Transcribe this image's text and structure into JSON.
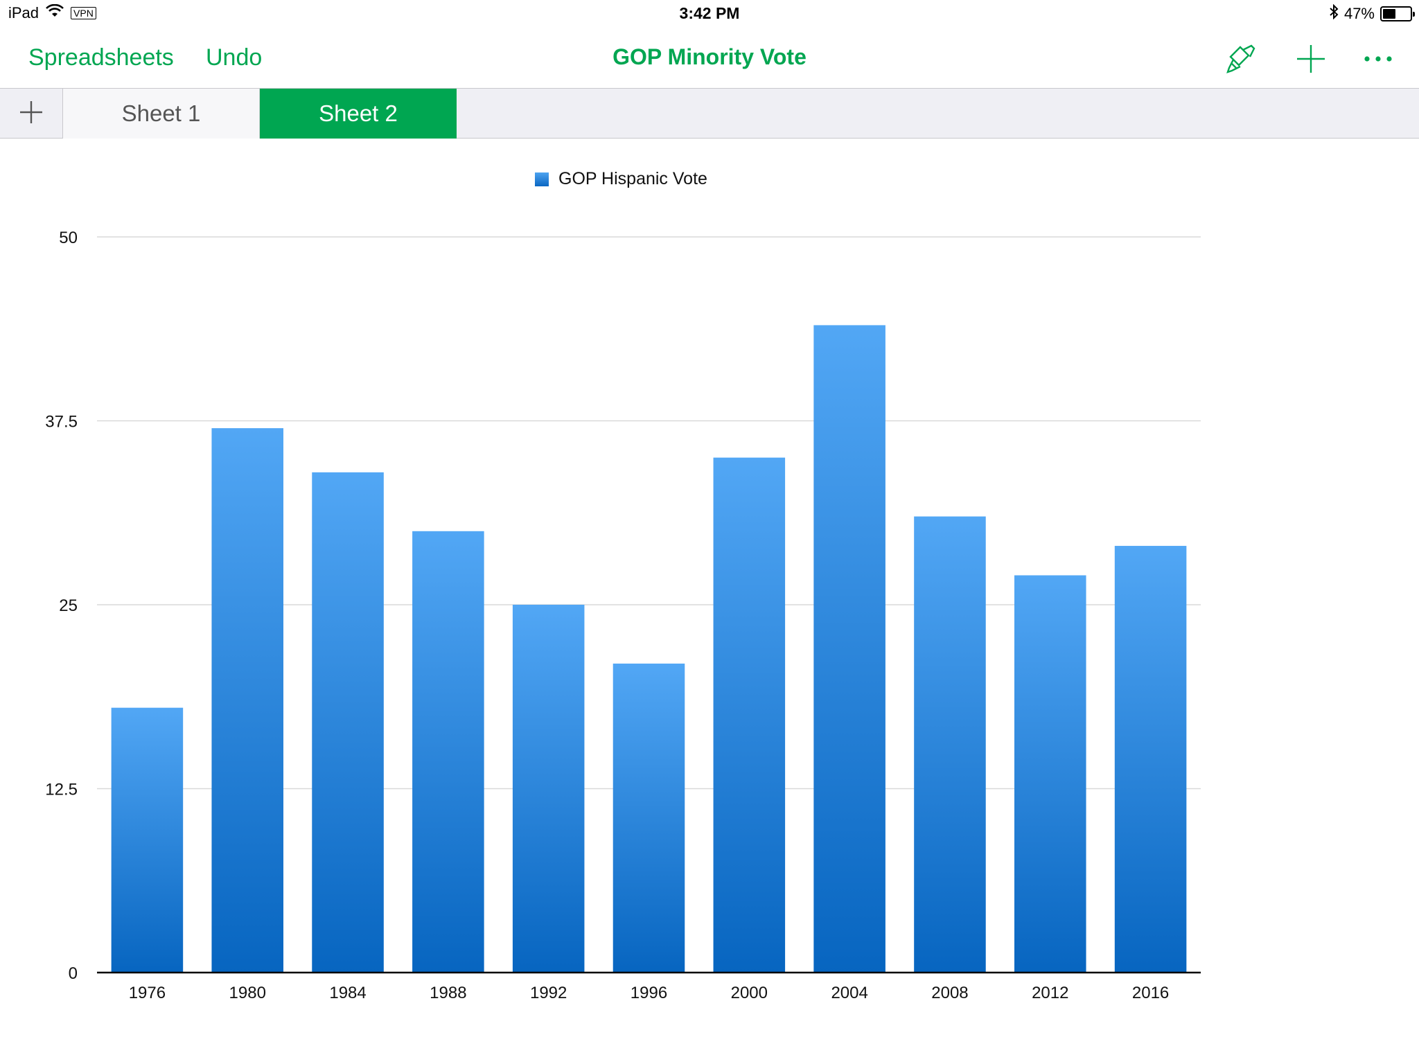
{
  "status_bar": {
    "device": "iPad",
    "vpn": "VPN",
    "time": "3:42 PM",
    "battery": "47%",
    "battery_level": 0.47
  },
  "nav": {
    "back_label": "Spreadsheets",
    "undo_label": "Undo",
    "title": "GOP Minority Vote",
    "icons": [
      "paintbrush-icon",
      "plus-icon",
      "more-icon"
    ]
  },
  "tabs": [
    {
      "label": "Sheet 1",
      "active": false
    },
    {
      "label": "Sheet 2",
      "active": true
    }
  ],
  "colors": {
    "accent": "#00a651",
    "bar_top": "#52a7f5",
    "bar_bottom": "#0765c0"
  },
  "chart_data": {
    "type": "bar",
    "categories": [
      "1976",
      "1980",
      "1984",
      "1988",
      "1992",
      "1996",
      "2000",
      "2004",
      "2008",
      "2012",
      "2016"
    ],
    "series": [
      {
        "name": "GOP Hispanic Vote",
        "values": [
          18,
          37,
          34,
          30,
          25,
          21,
          35,
          44,
          31,
          27,
          29
        ]
      }
    ],
    "ylim": [
      0,
      50
    ],
    "yticks": [
      "0",
      "12.5",
      "25",
      "37.5",
      "50"
    ],
    "grid": true,
    "legend": "top-center"
  }
}
